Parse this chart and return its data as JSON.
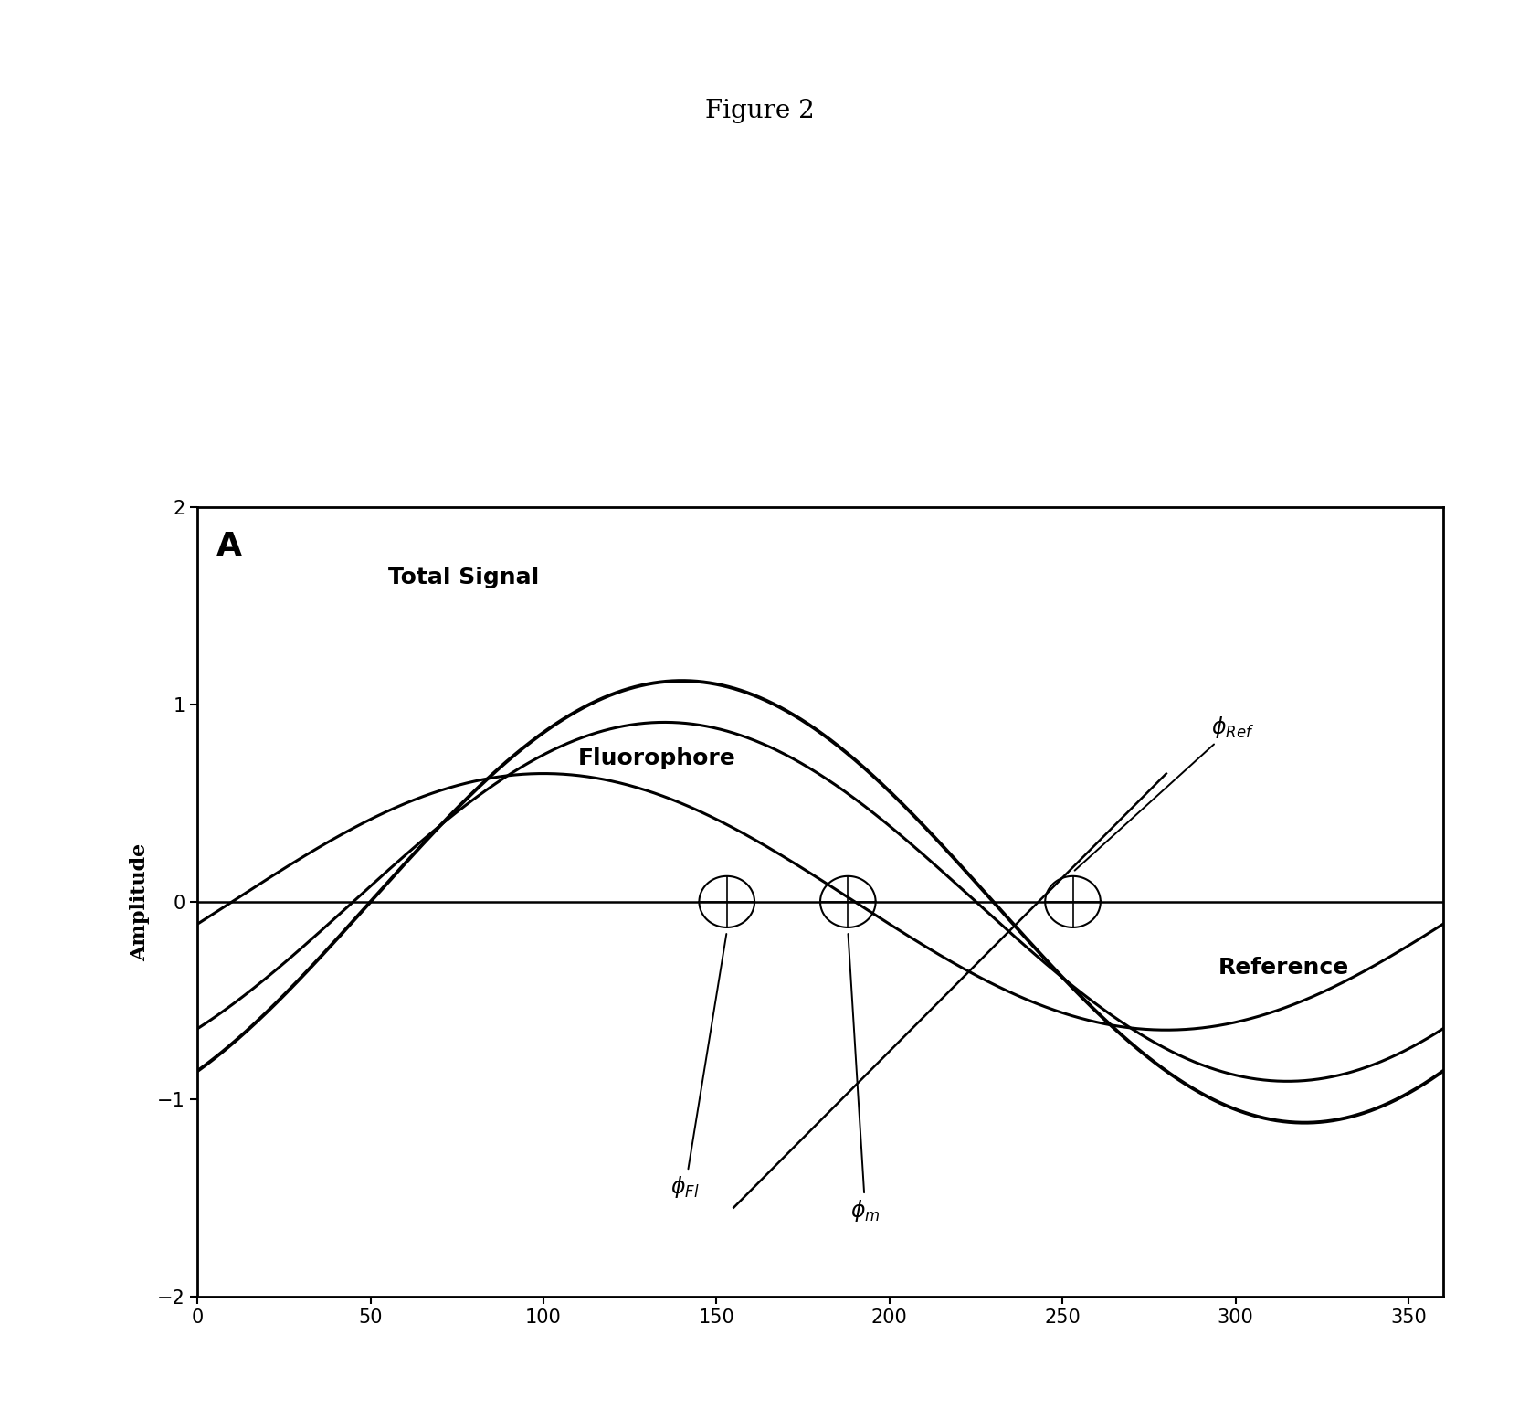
{
  "title": "Figure 2",
  "panel_label": "A",
  "ylabel": "Amplitude",
  "xlim": [
    0,
    360
  ],
  "ylim": [
    -2,
    2
  ],
  "xticks": [
    0,
    50,
    100,
    150,
    200,
    250,
    300,
    350
  ],
  "yticks": [
    -2,
    -1,
    0,
    1,
    2
  ],
  "background_color": "#ffffff",
  "plot_bg_color": "#ffffff",
  "title_fontsize": 20,
  "axis_label_fontsize": 16,
  "text_label_fontsize": 18,
  "panel_fontsize": 26,
  "phi_fontsize": 17,
  "lw_thick": 2.8,
  "lw_medium": 2.2,
  "lw_thin": 1.8,
  "total_signal_amp": 1.12,
  "total_signal_phase": 40,
  "fluorophore_amp": 0.91,
  "fluorophore_phase": 35,
  "reference_amp": 0.65,
  "reference_phase": -45,
  "ref_line_x1": 155,
  "ref_line_y1": -1.55,
  "ref_line_x2": 280,
  "ref_line_y2": 0.65,
  "phi_fl_x": 153,
  "phi_m_x": 188,
  "phi_ref_x": 253
}
